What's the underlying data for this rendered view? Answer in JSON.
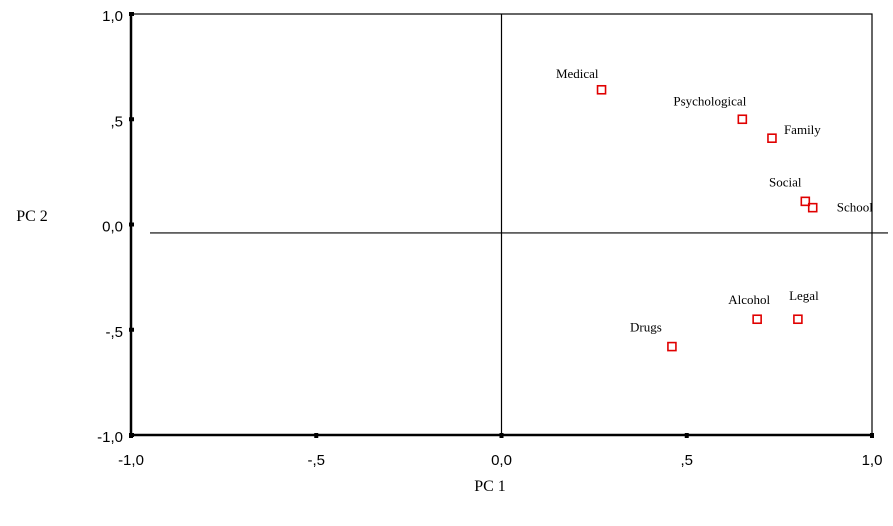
{
  "chart_data": {
    "type": "scatter",
    "title": "",
    "xlabel": "PC 1",
    "ylabel": "PC 2",
    "xlim": [
      -1.0,
      1.0
    ],
    "ylim": [
      -1.0,
      1.0
    ],
    "x_ticks": [
      -1.0,
      -0.5,
      0.0,
      0.5,
      1.0
    ],
    "y_ticks": [
      -1.0,
      -0.5,
      0.0,
      0.5,
      1.0
    ],
    "x_tick_labels": [
      "-1,0",
      "-,5",
      "0,0",
      ",5",
      "1,0"
    ],
    "y_tick_labels": [
      "-1,0",
      "-,5",
      "0,0",
      ",5",
      "1,0"
    ],
    "grid": false,
    "reference_lines": {
      "x": 0.0,
      "y": -0.04
    },
    "marker_color": "#e00000",
    "points": [
      {
        "label": "Medical",
        "x": 0.27,
        "y": 0.64
      },
      {
        "label": "Psychological",
        "x": 0.65,
        "y": 0.5
      },
      {
        "label": "Family",
        "x": 0.73,
        "y": 0.41
      },
      {
        "label": "Social",
        "x": 0.82,
        "y": 0.11
      },
      {
        "label": "School",
        "x": 0.84,
        "y": 0.08
      },
      {
        "label": "Alcohol",
        "x": 0.69,
        "y": -0.45
      },
      {
        "label": "Legal",
        "x": 0.8,
        "y": -0.45
      },
      {
        "label": "Drugs",
        "x": 0.46,
        "y": -0.58
      }
    ]
  }
}
